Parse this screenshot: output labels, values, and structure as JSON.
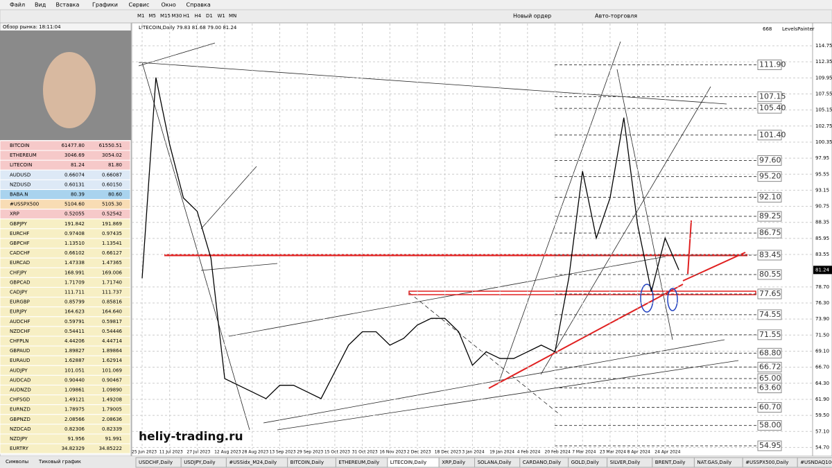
{
  "menu": [
    "Файл",
    "Вид",
    "Вставка",
    "Графики",
    "Сервис",
    "Окно",
    "Справка"
  ],
  "toolbar": {
    "timeframes": [
      "M1",
      "M5",
      "M15",
      "M30",
      "H1",
      "H4",
      "D1",
      "W1",
      "MN"
    ],
    "new_order": "Новый ордер",
    "auto_trading": "Авто-торговля"
  },
  "market_watch": {
    "title": "Обзор рынка: 18:11:04",
    "rows": [
      [
        "BITCOIN",
        "61477.80",
        "61550.51",
        "#f6c9c9"
      ],
      [
        "ETHEREUM",
        "3046.69",
        "3054.02",
        "#f6c9c9"
      ],
      [
        "LITECOIN",
        "81.24",
        "81.80",
        "#f6c9c9"
      ],
      [
        "AUDUSD",
        "0.66074",
        "0.66087",
        "#dde9f6"
      ],
      [
        "NZDUSD",
        "0.60131",
        "0.60150",
        "#dde9f6"
      ],
      [
        "BABA.N",
        "80.39",
        "80.60",
        "#a9d3ee"
      ],
      [
        "#USSPX500",
        "5104.60",
        "5105.30",
        "#f8dcb4"
      ],
      [
        "XRP",
        "0.52055",
        "0.52542",
        "#f6c9c9"
      ],
      [
        "GBPJPY",
        "191.842",
        "191.869",
        "#f7efc4"
      ],
      [
        "EURCHF",
        "0.97408",
        "0.97435",
        "#f7efc4"
      ],
      [
        "GBPCHF",
        "1.13510",
        "1.13541",
        "#f7efc4"
      ],
      [
        "CADCHF",
        "0.66102",
        "0.66127",
        "#f7efc4"
      ],
      [
        "EURCAD",
        "1.47338",
        "1.47365",
        "#f7efc4"
      ],
      [
        "CHFJPY",
        "168.991",
        "169.006",
        "#f7efc4"
      ],
      [
        "GBPCAD",
        "1.71709",
        "1.71740",
        "#f7efc4"
      ],
      [
        "CADJPY",
        "111.711",
        "111.737",
        "#f7efc4"
      ],
      [
        "EURGBP",
        "0.85799",
        "0.85816",
        "#f7efc4"
      ],
      [
        "EURJPY",
        "164.623",
        "164.640",
        "#f7efc4"
      ],
      [
        "AUDCHF",
        "0.59791",
        "0.59817",
        "#f7efc4"
      ],
      [
        "NZDCHF",
        "0.54411",
        "0.54446",
        "#f7efc4"
      ],
      [
        "CHFPLN",
        "4.44206",
        "4.44714",
        "#f7efc4"
      ],
      [
        "GBPAUD",
        "1.89827",
        "1.89864",
        "#f7efc4"
      ],
      [
        "EURAUD",
        "1.62887",
        "1.62914",
        "#f7efc4"
      ],
      [
        "AUDJPY",
        "101.051",
        "101.069",
        "#f7efc4"
      ],
      [
        "AUDCAD",
        "0.90440",
        "0.90467",
        "#f7efc4"
      ],
      [
        "AUDNZD",
        "1.09861",
        "1.09890",
        "#f7efc4"
      ],
      [
        "CHFSGD",
        "1.49121",
        "1.49208",
        "#f7efc4"
      ],
      [
        "EURNZD",
        "1.78975",
        "1.79005",
        "#f7efc4"
      ],
      [
        "GBPNZD",
        "2.08566",
        "2.08636",
        "#f7efc4"
      ],
      [
        "NZDCAD",
        "0.82306",
        "0.82339",
        "#f7efc4"
      ],
      [
        "NZDJPY",
        "91.956",
        "91.991",
        "#f7efc4"
      ],
      [
        "EURTRY",
        "34.82329",
        "34.85222",
        "#f7efc4"
      ]
    ],
    "tabs": [
      "Символы",
      "Тиковый график"
    ]
  },
  "chart": {
    "header": "LITECOIN,Daily 79.83 81.68 79.00 81.24",
    "bars": "668",
    "indicator": "LevelsPainter",
    "watermark": "heliy-trading.ru",
    "current_price": {
      "value": 81.24,
      "label": "81.24"
    },
    "ylim": [
      54.95,
      114.75
    ],
    "price_axis": [
      114.75,
      112.35,
      109.95,
      107.55,
      105.15,
      102.75,
      100.35,
      97.95,
      95.55,
      93.15,
      90.75,
      88.35,
      85.95,
      83.55,
      {
        "value": 78.7,
        "label": "78.70"
      },
      {
        "value": 76.3,
        "label": "76.30"
      },
      {
        "value": 73.9,
        "label": "73.90"
      },
      {
        "value": 71.5,
        "label": "71.50"
      },
      {
        "value": 69.1,
        "label": "69.10"
      },
      {
        "value": 66.7,
        "label": "66.70"
      },
      {
        "value": 64.3,
        "label": "64.30"
      },
      {
        "value": 61.9,
        "label": "61.90"
      },
      {
        "value": 59.5,
        "label": "59.50"
      },
      {
        "value": 57.1,
        "label": "57.10"
      },
      {
        "value": 54.7,
        "label": "54.70"
      }
    ],
    "levels": [
      {
        "value": 111.9,
        "label": "111.90"
      },
      107.15,
      {
        "value": 105.4,
        "label": "105.40"
      },
      {
        "value": 101.4,
        "label": "101.40"
      },
      {
        "value": 97.6,
        "label": "97.60"
      },
      {
        "value": 95.2,
        "label": "95.20"
      },
      {
        "value": 92.1,
        "label": "92.10"
      },
      89.25,
      86.75,
      83.45,
      80.55,
      77.65,
      74.55,
      71.55,
      {
        "value": 68.8,
        "label": "68.80"
      },
      66.72,
      {
        "value": 65.0,
        "label": "65.00"
      },
      {
        "value": 63.6,
        "label": "63.60"
      },
      {
        "value": 60.7,
        "label": "60.70"
      },
      {
        "value": 58.0,
        "label": "58.00"
      },
      54.95
    ],
    "dates": [
      "25 Jun 2023",
      "11 Jul 2023",
      "27 Jul 2023",
      "12 Aug 2023",
      "28 Aug 2023",
      "13 Sep 2023",
      "29 Sep 2023",
      "15 Oct 2023",
      "31 Oct 2023",
      "16 Nov 2023",
      "2 Dec 2023",
      "18 Dec 2023",
      "3 Jan 2024",
      "19 Jan 2024",
      "4 Feb 2024",
      "20 Feb 2024",
      "7 Mar 2024",
      "23 Mar 2024",
      "8 Apr 2024",
      "24 Apr 2024"
    ],
    "price": [
      80,
      110,
      100,
      92,
      90,
      83,
      65,
      64,
      63,
      62,
      64,
      64,
      63,
      62,
      66,
      70,
      72,
      72,
      70,
      71,
      73,
      74,
      74,
      72,
      67,
      69,
      68,
      68,
      69,
      70,
      69,
      80,
      96,
      86,
      92,
      104,
      88,
      78,
      86,
      81.24
    ]
  },
  "chart_tabs": [
    "USDCHF,Daily",
    "USDJPY,Daily",
    "#USSidx_M24,Daily",
    "BITCOIN,Daily",
    "ETHEREUM,Daily",
    "LITECOIN,Daily",
    "XRP,Daily",
    "SOLANA,Daily",
    "CARDANO,Daily",
    "GOLD,Daily",
    "SILVER,Daily",
    "BRENT,Daily",
    "NAT.GAS,Daily",
    "#USSPX500,Daily",
    "#USNDAQ100,Daily"
  ]
}
